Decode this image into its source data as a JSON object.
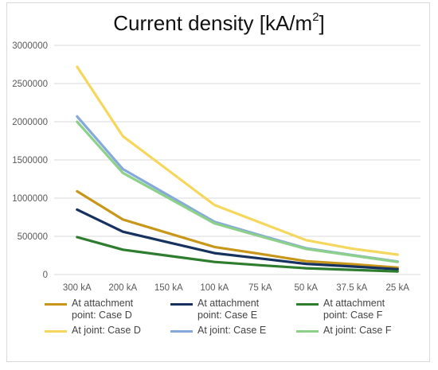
{
  "chart_data": {
    "type": "line",
    "title_main": "Current density [kA/m",
    "title_sup": "2",
    "title_end": "]",
    "categories": [
      "300 kA",
      "200 kA",
      "150 kA",
      "100 kA",
      "75 kA",
      "50 kA",
      "37.5 kA",
      "25 kA"
    ],
    "ylim": [
      0,
      3000000
    ],
    "yticks": [
      "0",
      "500000",
      "1000000",
      "1500000",
      "2000000",
      "2500000",
      "3000000"
    ],
    "ytick_values": [
      0,
      500000,
      1000000,
      1500000,
      2000000,
      2500000,
      3000000
    ],
    "grid": true,
    "legend_position": "bottom",
    "series": [
      {
        "name": "At attachment point: Case D",
        "color": "#c8971a",
        "values": [
          1090000,
          720000,
          540000,
          360000,
          270000,
          175000,
          135000,
          90000
        ]
      },
      {
        "name": "At attachment point: Case E",
        "color": "#17325e",
        "values": [
          850000,
          560000,
          420000,
          280000,
          210000,
          140000,
          105000,
          70000
        ]
      },
      {
        "name": "At attachment point: Case F",
        "color": "#2e7d2e",
        "values": [
          490000,
          325000,
          245000,
          165000,
          122000,
          82000,
          61000,
          41000
        ]
      },
      {
        "name": "At joint: Case D",
        "color": "#f6d75e",
        "values": [
          2720000,
          1810000,
          1360000,
          910000,
          680000,
          450000,
          340000,
          260000
        ]
      },
      {
        "name": "At joint: Case E",
        "color": "#86a9dc",
        "values": [
          2070000,
          1380000,
          1035000,
          690000,
          515000,
          345000,
          255000,
          170000
        ]
      },
      {
        "name": "At joint: Case F",
        "color": "#8cd08a",
        "values": [
          2000000,
          1330000,
          1000000,
          670000,
          500000,
          335000,
          250000,
          165000
        ]
      }
    ]
  },
  "legend": {
    "items": [
      {
        "line1": "At attachment",
        "line2": "point: Case D"
      },
      {
        "line1": "At attachment",
        "line2": "point: Case E"
      },
      {
        "line1": "At attachment",
        "line2": "point: Case F"
      },
      {
        "line1": "At joint: Case D",
        "line2": ""
      },
      {
        "line1": "At joint: Case E",
        "line2": ""
      },
      {
        "line1": "At joint: Case F",
        "line2": ""
      }
    ]
  }
}
